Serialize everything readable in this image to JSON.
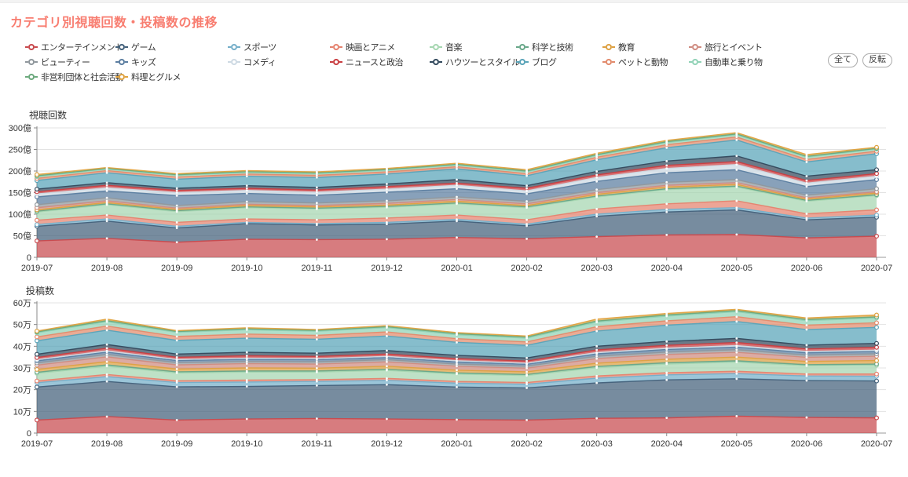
{
  "page": {
    "title": "カテゴリ別視聴回数・投稿数の推移"
  },
  "legend": {
    "items": [
      {
        "label": "エンターテインメント",
        "color": "#c8494d"
      },
      {
        "label": "ゲーム",
        "color": "#42607a"
      },
      {
        "label": "スポーツ",
        "color": "#74aec9"
      },
      {
        "label": "映画とアニメ",
        "color": "#e5826e"
      },
      {
        "label": "音楽",
        "color": "#a5d6b0"
      },
      {
        "label": "科学と技術",
        "color": "#68a789"
      },
      {
        "label": "教育",
        "color": "#dda041"
      },
      {
        "label": "旅行とイベント",
        "color": "#cf8b80"
      },
      {
        "label": "ビューティー",
        "color": "#8f979c"
      },
      {
        "label": "キッズ",
        "color": "#5a7da0"
      },
      {
        "label": "コメディ",
        "color": "#cdd9e3"
      },
      {
        "label": "ニュースと政治",
        "color": "#c93d40"
      },
      {
        "label": "ハウツーとスタイル",
        "color": "#31485c"
      },
      {
        "label": "ブログ",
        "color": "#58a3b8"
      },
      {
        "label": "ペットと動物",
        "color": "#e28a6b"
      },
      {
        "label": "自動車と乗り物",
        "color": "#90d2b6"
      },
      {
        "label": "非営利団体と社会活動",
        "color": "#6ca97d"
      },
      {
        "label": "料理とグルメ",
        "color": "#dfa23f"
      }
    ],
    "buttons": [
      {
        "label": "全て"
      },
      {
        "label": "反転"
      }
    ]
  },
  "chart_data": [
    {
      "type": "area",
      "stacked": true,
      "title": "視聴回数",
      "unit": "億",
      "x": [
        "2019-07",
        "2019-08",
        "2019-09",
        "2019-10",
        "2019-11",
        "2019-12",
        "2020-01",
        "2020-02",
        "2020-03",
        "2020-04",
        "2020-05",
        "2020-06",
        "2020-07"
      ],
      "ylim": [
        0,
        300
      ],
      "yticks": [
        0,
        50,
        100,
        150,
        200,
        250,
        300
      ],
      "ytick_labels": [
        "0",
        "50億",
        "100億",
        "150億",
        "200億",
        "250億",
        "300億"
      ],
      "grid": true,
      "legend_position": "top",
      "series": [
        {
          "name": "エンターテインメント",
          "color": "#c8494d",
          "values": [
            38,
            44,
            35,
            42,
            41,
            42,
            46,
            43,
            48,
            52,
            53,
            45,
            49
          ]
        },
        {
          "name": "ゲーム",
          "color": "#42607a",
          "values": [
            34,
            40,
            33,
            36,
            34,
            35,
            38,
            30,
            47,
            53,
            57,
            42,
            44
          ]
        },
        {
          "name": "スポーツ",
          "color": "#74aec9",
          "values": [
            4,
            5,
            4,
            3,
            3,
            4,
            4,
            4,
            5,
            6,
            5,
            4,
            5
          ]
        },
        {
          "name": "映画とアニメ",
          "color": "#e5826e",
          "values": [
            10,
            9,
            9,
            8,
            9,
            10,
            10,
            10,
            12,
            13,
            16,
            10,
            12
          ]
        },
        {
          "name": "音楽",
          "color": "#a5d6b0",
          "values": [
            19,
            24,
            25,
            26,
            25,
            25,
            26,
            28,
            28,
            33,
            32,
            29,
            33
          ]
        },
        {
          "name": "科学と技術",
          "color": "#68a789",
          "values": [
            2,
            2,
            2,
            2,
            2,
            2,
            2,
            2,
            2,
            2,
            2,
            2,
            2
          ]
        },
        {
          "name": "教育",
          "color": "#dda041",
          "values": [
            3,
            3,
            3,
            3,
            3,
            3,
            4,
            3,
            4,
            4,
            4,
            3,
            4
          ]
        },
        {
          "name": "旅行とイベント",
          "color": "#cf8b80",
          "values": [
            5,
            4,
            3,
            3,
            3,
            4,
            4,
            4,
            4,
            4,
            4,
            3,
            3
          ]
        },
        {
          "name": "ビューティー",
          "color": "#8f979c",
          "values": [
            7,
            7,
            6,
            6,
            6,
            6,
            6,
            6,
            7,
            7,
            7,
            6,
            7
          ]
        },
        {
          "name": "キッズ",
          "color": "#5a7da0",
          "values": [
            18,
            16,
            23,
            19,
            18,
            20,
            19,
            17,
            19,
            22,
            23,
            20,
            21
          ]
        },
        {
          "name": "コメディ",
          "color": "#cdd9e3",
          "values": [
            7,
            7,
            7,
            7,
            7,
            7,
            8,
            7,
            9,
            10,
            12,
            8,
            8
          ]
        },
        {
          "name": "ニュースと政治",
          "color": "#c93d40",
          "values": [
            5,
            6,
            5,
            5,
            5,
            6,
            5,
            6,
            6,
            7,
            7,
            6,
            6
          ]
        },
        {
          "name": "ハウツーとスタイル",
          "color": "#31485c",
          "values": [
            6,
            6,
            5,
            6,
            6,
            6,
            8,
            6,
            8,
            10,
            13,
            10,
            9
          ]
        },
        {
          "name": "ブログ",
          "color": "#58a3b8",
          "values": [
            20,
            23,
            21,
            22,
            23,
            23,
            25,
            23,
            27,
            31,
            37,
            33,
            37
          ]
        },
        {
          "name": "ペットと動物",
          "color": "#e28a6b",
          "values": [
            5,
            5,
            5,
            5,
            5,
            5,
            5,
            5,
            6,
            7,
            7,
            6,
            6
          ]
        },
        {
          "name": "自動車と乗り物",
          "color": "#90d2b6",
          "values": [
            4,
            4,
            4,
            4,
            4,
            4,
            4,
            4,
            4,
            5,
            5,
            5,
            5
          ]
        },
        {
          "name": "非営利団体と社会活動",
          "color": "#6ca97d",
          "values": [
            2,
            1,
            1.5,
            1.5,
            1.5,
            1.5,
            1.5,
            2,
            2,
            2,
            2,
            2,
            1.5
          ]
        },
        {
          "name": "料理とグルメ",
          "color": "#dfa23f",
          "values": [
            3,
            2,
            2.5,
            2.5,
            2.5,
            2.5,
            2.5,
            3,
            3,
            3,
            3,
            4,
            2.5
          ]
        }
      ]
    },
    {
      "type": "area",
      "stacked": true,
      "title": "投稿数",
      "unit": "万",
      "x": [
        "2019-07",
        "2019-08",
        "2019-09",
        "2019-10",
        "2019-11",
        "2019-12",
        "2020-01",
        "2020-02",
        "2020-03",
        "2020-04",
        "2020-05",
        "2020-06",
        "2020-07"
      ],
      "ylim": [
        0,
        60
      ],
      "yticks": [
        0,
        10,
        20,
        30,
        40,
        50,
        60
      ],
      "ytick_labels": [
        "0",
        "10万",
        "20万",
        "30万",
        "40万",
        "50万",
        "60万"
      ],
      "grid": true,
      "legend_position": "top",
      "series": [
        {
          "name": "エンターテインメント",
          "color": "#c8494d",
          "values": [
            6,
            7.6,
            6,
            6.5,
            6.7,
            6.5,
            6.2,
            6,
            6.8,
            7,
            7.8,
            7.2,
            7
          ]
        },
        {
          "name": "ゲーム",
          "color": "#42607a",
          "values": [
            15.2,
            16.2,
            15.3,
            15,
            15.2,
            15.8,
            15,
            14.8,
            16.3,
            17.5,
            17.2,
            17,
            17
          ]
        },
        {
          "name": "スポーツ",
          "color": "#74aec9",
          "values": [
            2,
            2.2,
            2,
            2,
            1.9,
            2,
            1.8,
            1.7,
            2.2,
            2.3,
            2.4,
            2.1,
            2.2
          ]
        },
        {
          "name": "映画とアニメ",
          "color": "#e5826e",
          "values": [
            0.8,
            1,
            0.8,
            0.9,
            0.8,
            0.9,
            0.8,
            0.8,
            1,
            1,
            1.1,
            0.9,
            1
          ]
        },
        {
          "name": "音楽",
          "color": "#a5d6b0",
          "values": [
            3.5,
            3.8,
            3.6,
            3.7,
            3.5,
            3.7,
            3.4,
            3.2,
            3.8,
            4,
            4.2,
            3.8,
            4
          ]
        },
        {
          "name": "科学と技術",
          "color": "#68a789",
          "values": [
            0.5,
            0.6,
            0.5,
            0.5,
            0.5,
            0.5,
            0.5,
            0.5,
            0.6,
            0.6,
            0.6,
            0.5,
            0.6
          ]
        },
        {
          "name": "教育",
          "color": "#dda041",
          "values": [
            1.3,
            1.5,
            1.3,
            1.4,
            1.3,
            1.4,
            1.3,
            1.2,
            1.5,
            1.6,
            1.7,
            1.5,
            1.6
          ]
        },
        {
          "name": "旅行とイベント",
          "color": "#cf8b80",
          "values": [
            2,
            2.2,
            1.9,
            2,
            1.9,
            2,
            1.8,
            1.7,
            2.1,
            2.2,
            2.2,
            1.9,
            2
          ]
        },
        {
          "name": "ビューティー",
          "color": "#8f979c",
          "values": [
            1,
            1.1,
            1,
            1,
            1,
            1,
            1,
            0.9,
            1.1,
            1.1,
            1.2,
            1,
            1.1
          ]
        },
        {
          "name": "キッズ",
          "color": "#5a7da0",
          "values": [
            1,
            1.1,
            1,
            1,
            1,
            1,
            1,
            0.9,
            1.1,
            1.2,
            1.2,
            1.1,
            1.1
          ]
        },
        {
          "name": "コメディ",
          "color": "#cdd9e3",
          "values": [
            0.5,
            0.6,
            0.5,
            0.5,
            0.5,
            0.5,
            0.5,
            0.5,
            0.6,
            0.6,
            0.7,
            0.6,
            0.6
          ]
        },
        {
          "name": "ニュースと政治",
          "color": "#c93d40",
          "values": [
            1,
            1.2,
            1,
            1.1,
            1,
            1.1,
            1,
            1,
            1.2,
            1.3,
            1.4,
            1.2,
            1.3
          ]
        },
        {
          "name": "ハウツーとスタイル",
          "color": "#31485c",
          "values": [
            1.5,
            1.7,
            1.5,
            1.6,
            1.5,
            1.6,
            1.5,
            1.4,
            1.7,
            1.8,
            1.9,
            1.7,
            1.8
          ]
        },
        {
          "name": "ブログ",
          "color": "#58a3b8",
          "values": [
            6.2,
            6.6,
            6.3,
            6.5,
            6.4,
            6.7,
            6,
            5.8,
            7,
            7.5,
            7.8,
            7.2,
            7.4
          ]
        },
        {
          "name": "ペットと動物",
          "color": "#e28a6b",
          "values": [
            1.8,
            1.9,
            1.8,
            1.9,
            1.8,
            1.9,
            1.7,
            1.6,
            2,
            2,
            2.2,
            2,
            2.1
          ]
        },
        {
          "name": "自動車と乗り物",
          "color": "#90d2b6",
          "values": [
            1.9,
            2,
            1.9,
            2,
            1.9,
            2,
            1.8,
            1.7,
            2.1,
            2.2,
            2.3,
            2.1,
            2.2
          ]
        },
        {
          "name": "非営利団体と社会活動",
          "color": "#6ca97d",
          "values": [
            0.4,
            0.5,
            0.4,
            0.4,
            0.4,
            0.4,
            0.5,
            0.5,
            0.5,
            0.5,
            0.5,
            0.5,
            0.5
          ]
        },
        {
          "name": "料理とグルメ",
          "color": "#dfa23f",
          "values": [
            0.4,
            0.7,
            0.4,
            0.5,
            0.4,
            0.5,
            0.5,
            0.5,
            0.9,
            0.7,
            0.6,
            0.7,
            0.9
          ]
        }
      ]
    }
  ]
}
